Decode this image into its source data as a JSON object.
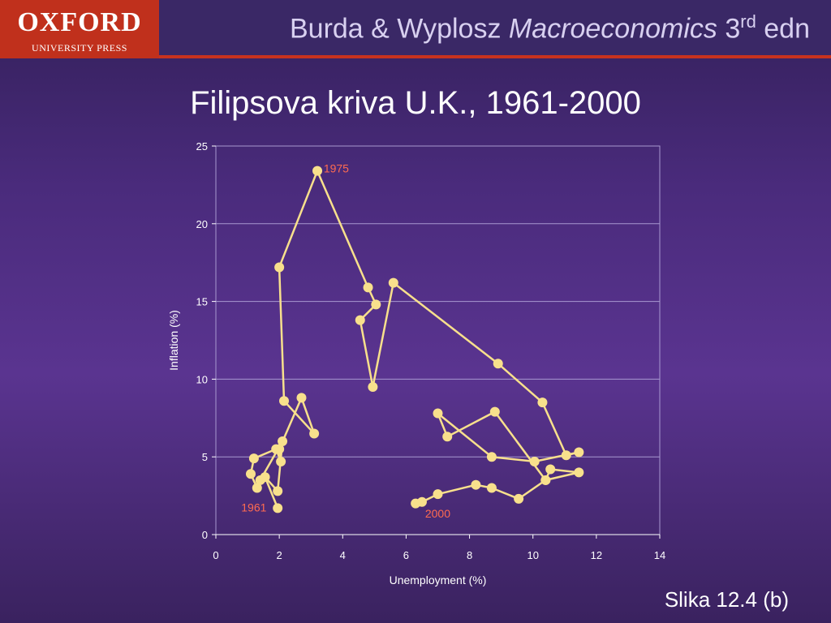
{
  "header": {
    "logo_main": "OXFORD",
    "logo_sub": "UNIVERSITY PRESS",
    "book_authors": "Burda & Wyplosz ",
    "book_title": "Macroeconomics",
    "book_edition_num": " 3",
    "book_edition_sup": "rd",
    "book_edition_suffix": " edn"
  },
  "slide": {
    "title": "Filipsova kriva U.K., 1961-2000",
    "caption": "Slika 12.4 (b)"
  },
  "colors": {
    "header_bar": "#3a2866",
    "accent_red": "#c0301c",
    "series": "#f8e08c",
    "label_red": "#ff6b50",
    "gridline": "#a898d0"
  },
  "chart_data": {
    "type": "scatter",
    "title": "",
    "xlabel": "Unemployment (%)",
    "ylabel": "Inflation (%)",
    "xlim": [
      0,
      14
    ],
    "ylim": [
      0,
      25
    ],
    "x_ticks": [
      0,
      2,
      4,
      6,
      8,
      10,
      12,
      14
    ],
    "y_ticks": [
      0,
      5,
      10,
      15,
      20,
      25
    ],
    "grid": "horizontal",
    "connected": true,
    "series": [
      {
        "x": [
          1.95,
          1.55,
          1.95,
          2.1,
          1.4,
          1.3,
          1.1,
          1.2,
          1.9,
          2.05,
          2.0,
          2.7,
          3.1,
          2.15,
          2.0,
          3.2,
          4.8,
          5.05,
          4.55,
          4.95,
          5.6,
          8.9,
          10.3,
          11.05,
          11.45,
          10.05,
          8.7,
          7.0,
          7.3,
          8.8,
          10.4,
          10.55,
          11.45,
          10.4,
          9.55,
          8.7,
          8.2,
          7.0,
          6.5,
          6.3
        ],
        "y": [
          1.7,
          3.7,
          2.8,
          6.0,
          3.5,
          3.0,
          3.9,
          4.9,
          5.5,
          4.7,
          5.5,
          8.8,
          6.5,
          8.6,
          17.2,
          23.4,
          15.9,
          14.8,
          13.8,
          9.5,
          16.2,
          11.0,
          8.5,
          5.1,
          5.3,
          4.7,
          5.0,
          7.8,
          6.3,
          7.9,
          3.5,
          4.2,
          4.0,
          3.5,
          2.3,
          3.0,
          3.2,
          2.6,
          2.1,
          2.0
        ]
      }
    ],
    "annotations": [
      {
        "text": "1961",
        "x": 0.8,
        "y": 1.5
      },
      {
        "text": "1975",
        "x": 3.4,
        "y": 23.3
      },
      {
        "text": "2000",
        "x": 6.6,
        "y": 1.1
      }
    ]
  }
}
